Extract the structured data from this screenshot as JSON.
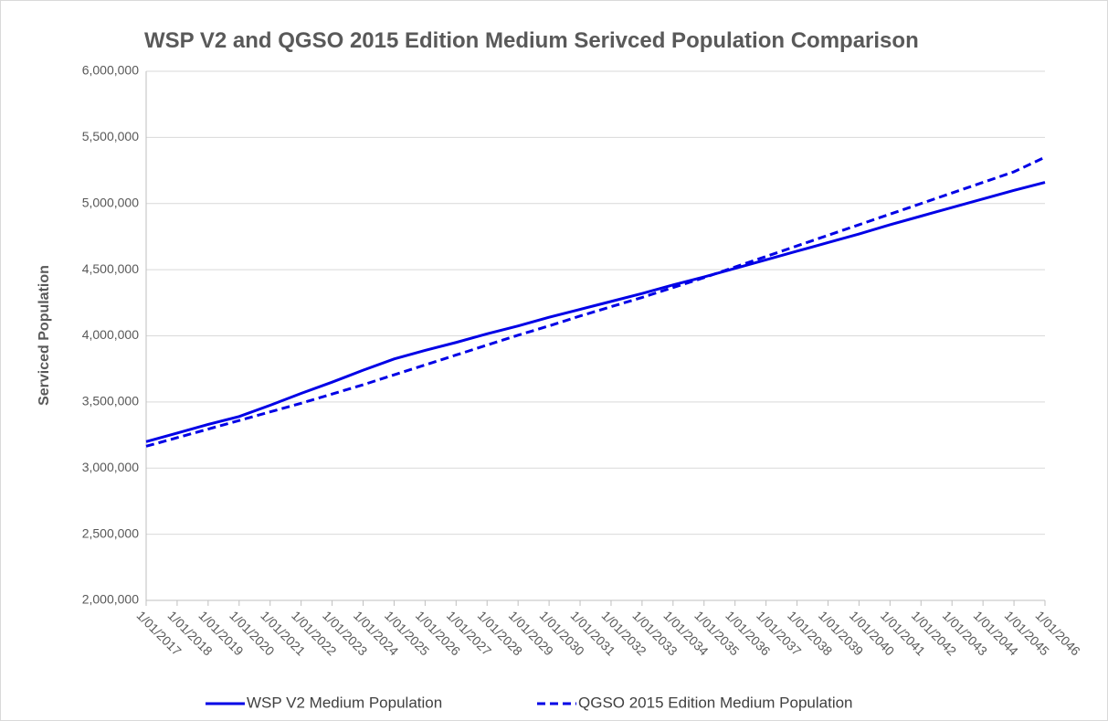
{
  "chart_data": {
    "type": "line",
    "title": "WSP V2 and QGSO 2015 Edition Medium Serivced Population Comparison",
    "y_label": "Serviced Population",
    "categories": [
      "1/01/2017",
      "1/01/2018",
      "1/01/2019",
      "1/01/2020",
      "1/01/2021",
      "1/01/2022",
      "1/01/2023",
      "1/01/2024",
      "1/01/2025",
      "1/01/2026",
      "1/01/2027",
      "1/01/2028",
      "1/01/2029",
      "1/01/2030",
      "1/01/2031",
      "1/01/2032",
      "1/01/2033",
      "1/01/2034",
      "1/01/2035",
      "1/01/2036",
      "1/01/2037",
      "1/01/2038",
      "1/01/2039",
      "1/01/2040",
      "1/01/2041",
      "1/01/2042",
      "1/01/2043",
      "1/01/2044",
      "1/01/2045",
      "1/01/2046"
    ],
    "series": [
      {
        "name": "WSP V2 Medium Population",
        "color": "#0000e6",
        "line_style": "solid",
        "values": [
          3200000,
          3265000,
          3330000,
          3390000,
          3475000,
          3565000,
          3650000,
          3740000,
          3825000,
          3890000,
          3950000,
          4015000,
          4075000,
          4140000,
          4200000,
          4260000,
          4320000,
          4385000,
          4445000,
          4510000,
          4575000,
          4640000,
          4705000,
          4770000,
          4840000,
          4905000,
          4970000,
          5035000,
          5100000,
          5160000
        ]
      },
      {
        "name": "QGSO 2015 Edition Medium Population",
        "color": "#0000e6",
        "line_style": "dashed",
        "values": [
          3165000,
          3230000,
          3295000,
          3360000,
          3425000,
          3490000,
          3560000,
          3630000,
          3705000,
          3780000,
          3855000,
          3930000,
          4005000,
          4075000,
          4150000,
          4220000,
          4290000,
          4365000,
          4440000,
          4520000,
          4600000,
          4680000,
          4760000,
          4840000,
          4920000,
          5000000,
          5080000,
          5160000,
          5240000,
          5350000
        ]
      }
    ],
    "ylim": [
      2000000,
      6000000
    ],
    "yticks": [
      {
        "value": 2000000,
        "label": "2,000,000"
      },
      {
        "value": 2500000,
        "label": "2,500,000"
      },
      {
        "value": 3000000,
        "label": "3,000,000"
      },
      {
        "value": 3500000,
        "label": "3,500,000"
      },
      {
        "value": 4000000,
        "label": "4,000,000"
      },
      {
        "value": 4500000,
        "label": "4,500,000"
      },
      {
        "value": 5000000,
        "label": "5,000,000"
      },
      {
        "value": 5500000,
        "label": "5,500,000"
      },
      {
        "value": 6000000,
        "label": "6,000,000"
      }
    ],
    "grid": true,
    "legend": "bottom"
  }
}
